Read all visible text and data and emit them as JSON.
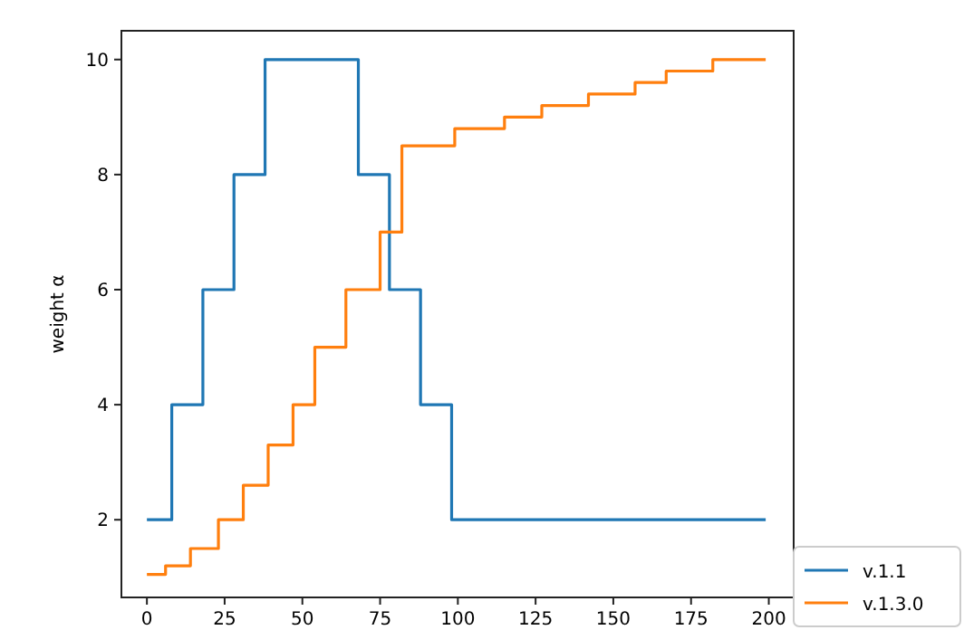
{
  "chart_data": {
    "type": "step",
    "ylabel": "weight α",
    "xlim": [
      -8.2,
      208
    ],
    "ylim": [
      0.65,
      10.5
    ],
    "xticks": [
      0,
      25,
      50,
      75,
      100,
      125,
      150,
      175,
      200
    ],
    "yticks": [
      2,
      4,
      6,
      8,
      10
    ],
    "grid": false,
    "legend": "bottom right",
    "series": [
      {
        "name": "v.1.1",
        "color": "#1f77b4",
        "x": [
          0,
          8,
          18,
          28,
          38,
          68,
          78,
          88,
          98,
          199
        ],
        "values": [
          2,
          4,
          6,
          8,
          10,
          8,
          6,
          4,
          2,
          2
        ]
      },
      {
        "name": "v.1.3.0",
        "color": "#ff7f0e",
        "x": [
          0,
          6,
          14,
          23,
          31,
          39,
          47,
          54,
          64,
          75,
          82,
          99,
          115,
          127,
          142,
          157,
          167,
          182,
          199
        ],
        "values": [
          1.05,
          1.2,
          1.5,
          2.0,
          2.6,
          3.3,
          4.0,
          5.0,
          6.0,
          7.0,
          8.5,
          8.8,
          9.0,
          9.2,
          9.4,
          9.6,
          9.8,
          10.0,
          10.0
        ]
      }
    ]
  }
}
